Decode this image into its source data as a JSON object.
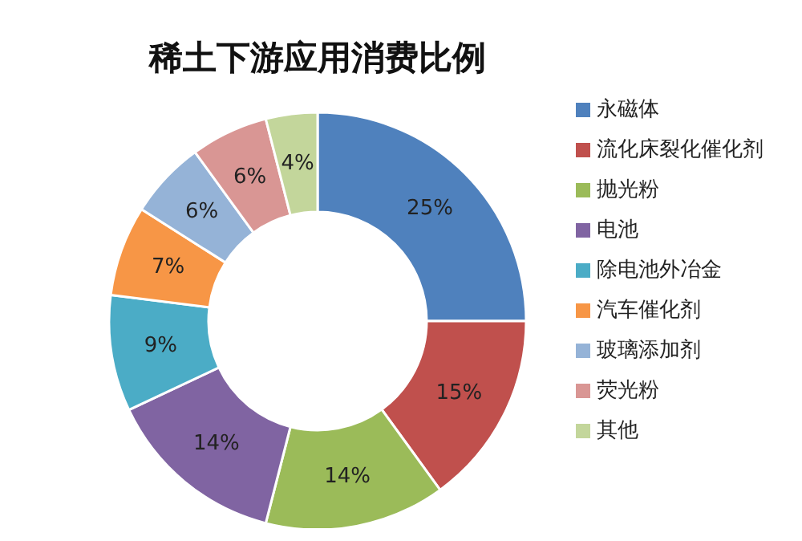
{
  "chart_data": {
    "type": "donut",
    "title": "稀土下游应用消费比例",
    "categories": [
      "永磁体",
      "流化床裂化催化剂",
      "抛光粉",
      "电池",
      "除电池外冶金",
      "汽车催化剂",
      "玻璃添加剂",
      "荧光粉",
      "其他"
    ],
    "values": [
      25,
      15,
      14,
      14,
      9,
      7,
      6,
      6,
      4
    ],
    "value_labels": [
      "25%",
      "15%",
      "14%",
      "14%",
      "9%",
      "7%",
      "6%",
      "6%",
      "4%"
    ],
    "colors": [
      "#4f81bd",
      "#c0504d",
      "#9bbb59",
      "#8064a2",
      "#4bacc6",
      "#f79646",
      "#95b3d7",
      "#d99694",
      "#c3d69b"
    ],
    "legend": "right"
  }
}
